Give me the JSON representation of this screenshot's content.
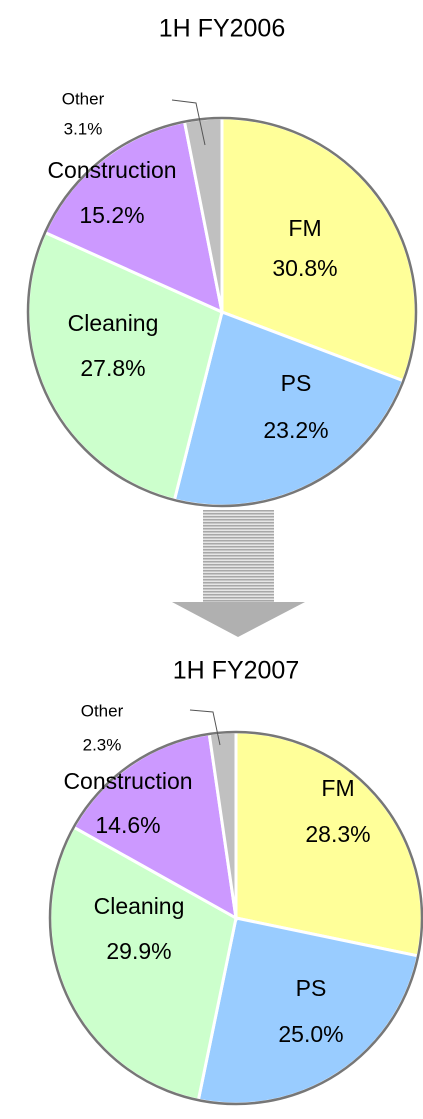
{
  "chart_data": [
    {
      "type": "pie",
      "title": "1H FY2006",
      "categories": [
        "FM",
        "PS",
        "Cleaning",
        "Construction",
        "Other"
      ],
      "values": [
        30.8,
        23.2,
        27.8,
        15.2,
        3.1
      ],
      "value_labels": [
        "30.8%",
        "23.2%",
        "27.8%",
        "15.2%",
        "3.1%"
      ],
      "colors": [
        "#ffff99",
        "#99ccff",
        "#ccffcc",
        "#cc99ff",
        "#c0c0c0"
      ]
    },
    {
      "type": "pie",
      "title": "1H FY2007",
      "categories": [
        "FM",
        "PS",
        "Cleaning",
        "Construction",
        "Other"
      ],
      "values": [
        28.3,
        25.0,
        29.9,
        14.6,
        2.3
      ],
      "value_labels": [
        "28.3%",
        "25.0%",
        "29.9%",
        "14.6%",
        "2.3%"
      ],
      "colors": [
        "#ffff99",
        "#99ccff",
        "#ccffcc",
        "#cc99ff",
        "#c0c0c0"
      ]
    }
  ]
}
